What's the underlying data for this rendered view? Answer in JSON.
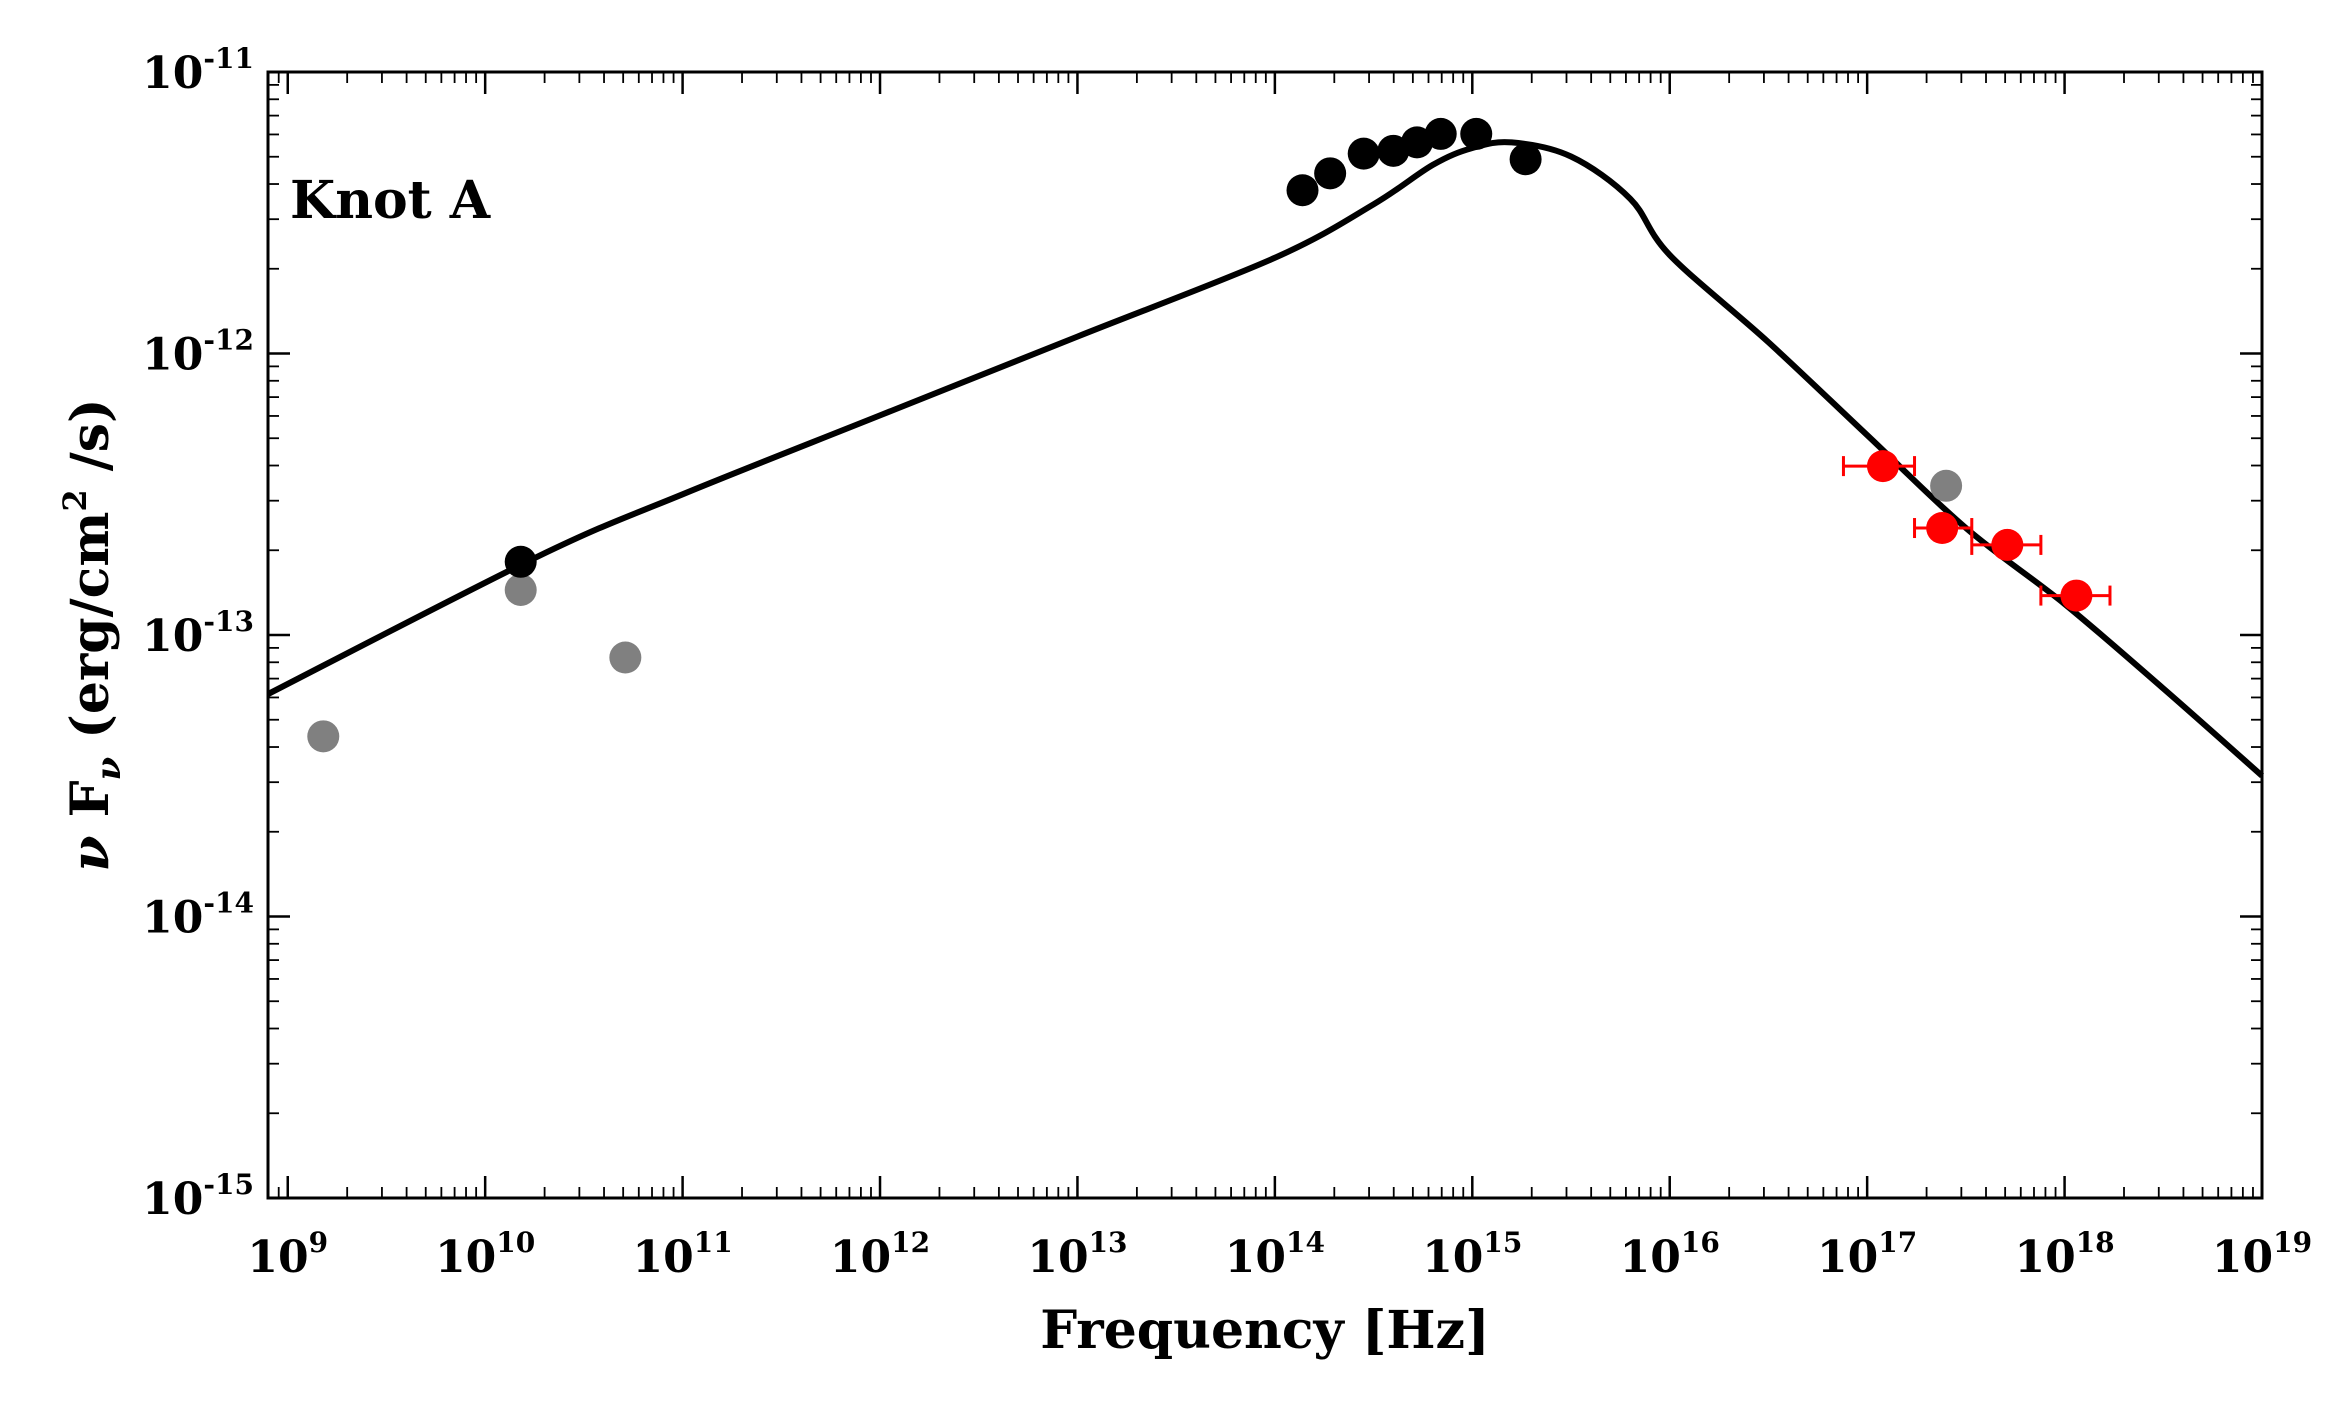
{
  "chart_data": {
    "type": "scatter",
    "xscale": "log",
    "yscale": "log",
    "xlim_exp": [
      8.9,
      19
    ],
    "ylim_exp": [
      -15,
      -11
    ],
    "x_ticks": [
      {
        "base": "10",
        "exp": "9",
        "value": 9
      },
      {
        "base": "10",
        "exp": "10",
        "value": 10
      },
      {
        "base": "10",
        "exp": "11",
        "value": 11
      },
      {
        "base": "10",
        "exp": "12",
        "value": 12
      },
      {
        "base": "10",
        "exp": "13",
        "value": 13
      },
      {
        "base": "10",
        "exp": "14",
        "value": 14
      },
      {
        "base": "10",
        "exp": "15",
        "value": 15
      },
      {
        "base": "10",
        "exp": "16",
        "value": 16
      },
      {
        "base": "10",
        "exp": "17",
        "value": 17
      },
      {
        "base": "10",
        "exp": "18",
        "value": 18
      },
      {
        "base": "10",
        "exp": "19",
        "value": 19
      }
    ],
    "y_ticks": [
      {
        "base": "10",
        "exp": "-11",
        "value": -11
      },
      {
        "base": "10",
        "exp": "-12",
        "value": -12
      },
      {
        "base": "10",
        "exp": "-13",
        "value": -13
      },
      {
        "base": "10",
        "exp": "-14",
        "value": -14
      },
      {
        "base": "10",
        "exp": "-15",
        "value": -15
      }
    ],
    "xlabel": "Frequency [Hz]",
    "ylabel_parts": {
      "nu": "ν",
      "F": " F",
      "sub": "ν",
      "units_pre": "  (erg/cm",
      "units_sup": "2",
      "units_post": " /s)"
    },
    "annotation": "Knot A",
    "model_curve": {
      "name": "model",
      "color": "#000000",
      "points": [
        [
          8.9,
          -13.21
        ],
        [
          10.27,
          -12.72
        ],
        [
          11.0,
          -12.5
        ],
        [
          12.0,
          -12.22
        ],
        [
          13.0,
          -11.94
        ],
        [
          14.0,
          -11.66
        ],
        [
          14.5,
          -11.47
        ],
        [
          14.8,
          -11.33
        ],
        [
          15.0,
          -11.27
        ],
        [
          15.2,
          -11.25
        ],
        [
          15.5,
          -11.3
        ],
        [
          15.8,
          -11.45
        ],
        [
          16.0,
          -11.65
        ],
        [
          16.5,
          -11.96
        ],
        [
          17.0,
          -12.29
        ],
        [
          17.5,
          -12.62
        ],
        [
          18.0,
          -12.89
        ],
        [
          18.5,
          -13.19
        ],
        [
          19.0,
          -13.5
        ]
      ]
    },
    "series": [
      {
        "name": "radio-gray",
        "color": "#808080",
        "points": [
          [
            9.18,
            -13.36
          ],
          [
            10.71,
            -13.08
          ],
          [
            10.18,
            -12.84
          ]
        ]
      },
      {
        "name": "black-data",
        "color": "#000000",
        "points": [
          [
            10.18,
            -12.74
          ],
          [
            14.14,
            -11.42
          ],
          [
            14.28,
            -11.36
          ],
          [
            14.45,
            -11.29
          ],
          [
            14.6,
            -11.28
          ],
          [
            14.72,
            -11.25
          ],
          [
            14.84,
            -11.22
          ],
          [
            15.02,
            -11.22
          ],
          [
            15.27,
            -11.31
          ]
        ]
      },
      {
        "name": "xray-gray",
        "color": "#808080",
        "points": [
          [
            17.4,
            -12.47
          ]
        ]
      },
      {
        "name": "xray-red",
        "color": "#ff0000",
        "points": [
          {
            "x": 17.08,
            "y": -12.4,
            "xerr": [
              16.88,
              17.24
            ]
          },
          {
            "x": 17.38,
            "y": -12.62,
            "xerr": [
              17.24,
              17.53
            ]
          },
          {
            "x": 17.71,
            "y": -12.68,
            "xerr": [
              17.53,
              17.88
            ]
          },
          {
            "x": 18.06,
            "y": -12.86,
            "xerr": [
              17.88,
              18.23
            ]
          }
        ]
      }
    ]
  }
}
